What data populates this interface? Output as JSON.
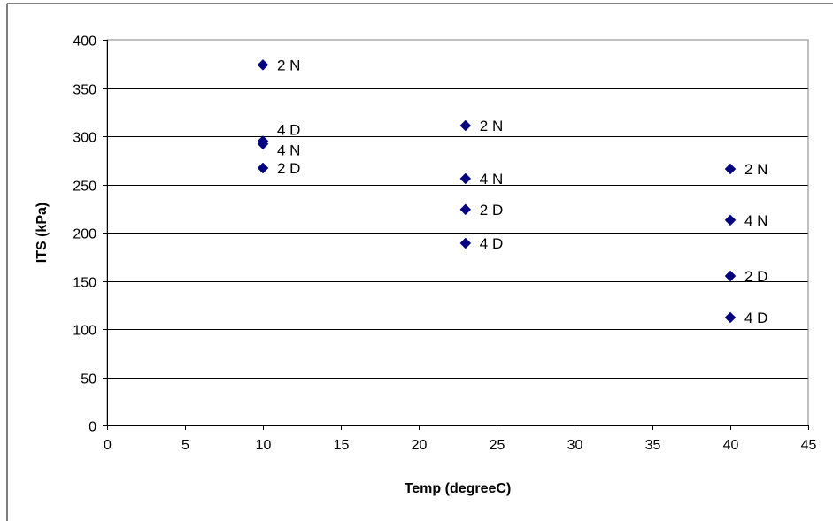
{
  "chart_data": {
    "type": "scatter",
    "title": "",
    "xlabel": "Temp (degreeC)",
    "ylabel": "ITS (kPa)",
    "xlim": [
      0,
      45
    ],
    "ylim": [
      0,
      400
    ],
    "xticks": [
      0,
      5,
      10,
      15,
      20,
      25,
      30,
      35,
      40,
      45
    ],
    "yticks": [
      0,
      50,
      100,
      150,
      200,
      250,
      300,
      350,
      400
    ],
    "grid": "horizontal",
    "legend": "none",
    "marker": "diamond",
    "marker_color": "#000080",
    "points": [
      {
        "x": 10,
        "y": 374,
        "label": "2 N"
      },
      {
        "x": 10,
        "y": 295,
        "label": "4 D"
      },
      {
        "x": 10,
        "y": 292,
        "label": "4 N"
      },
      {
        "x": 10,
        "y": 267,
        "label": "2 D"
      },
      {
        "x": 23,
        "y": 311,
        "label": "2 N"
      },
      {
        "x": 23,
        "y": 256,
        "label": "4 N"
      },
      {
        "x": 23,
        "y": 224,
        "label": "2 D"
      },
      {
        "x": 23,
        "y": 189,
        "label": "4 D"
      },
      {
        "x": 40,
        "y": 266,
        "label": "2 N"
      },
      {
        "x": 40,
        "y": 213,
        "label": "4 N"
      },
      {
        "x": 40,
        "y": 155,
        "label": "2 D"
      },
      {
        "x": 40,
        "y": 112,
        "label": "4 D"
      }
    ]
  }
}
